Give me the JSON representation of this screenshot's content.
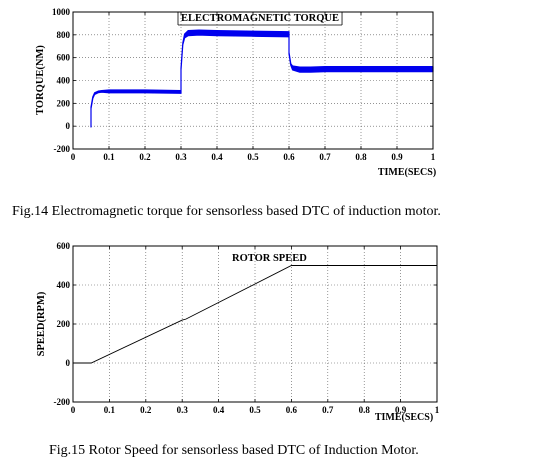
{
  "figures": [
    {
      "caption": "Fig.14 Electromagnetic torque for sensorless based DTC of induction motor."
    },
    {
      "caption": "Fig.15 Rotor Speed for sensorless based DTC of Induction Motor."
    }
  ],
  "chart_data": [
    {
      "type": "line",
      "title": "ELECTROMAGNETIC TORQUE",
      "xlabel": "TIME(SECS)",
      "ylabel": "TORQUE(NM)",
      "xlim": [
        0,
        1
      ],
      "ylim": [
        -200,
        1000
      ],
      "xticks": [
        0,
        0.1,
        0.2,
        0.3,
        0.4,
        0.5,
        0.6,
        0.7,
        0.8,
        0.9,
        1
      ],
      "xtick_labels": [
        "0",
        "0.1",
        "0.2",
        "0.3",
        "0.4",
        "0.5",
        "0.6",
        "0.7",
        "0.8",
        "0.9",
        "1"
      ],
      "yticks": [
        -200,
        0,
        200,
        400,
        600,
        800,
        1000
      ],
      "ytick_labels": [
        "-200",
        "0",
        "200",
        "400",
        "600",
        "800",
        "1000"
      ],
      "grid": true,
      "band_color": "#0000ee",
      "series": [
        {
          "x": [
            0.05,
            0.05,
            0.055,
            0.06,
            0.07,
            0.08,
            0.1,
            0.2,
            0.3,
            0.3,
            0.305,
            0.31,
            0.32,
            0.35,
            0.4,
            0.5,
            0.6,
            0.6,
            0.605,
            0.61,
            0.63,
            0.66,
            0.7,
            0.8,
            0.9,
            1.0
          ],
          "y": [
            0,
            160,
            250,
            285,
            300,
            305,
            305,
            305,
            300,
            500,
            720,
            790,
            815,
            820,
            815,
            810,
            805,
            640,
            540,
            510,
            495,
            495,
            500,
            500,
            500,
            500
          ],
          "band": [
            0,
            0,
            0,
            0,
            0,
            0,
            10,
            10,
            10,
            0,
            0,
            20,
            30,
            30,
            30,
            30,
            30,
            0,
            0,
            20,
            30,
            30,
            30,
            30,
            30,
            30
          ]
        }
      ]
    },
    {
      "type": "line",
      "title": "ROTOR SPEED",
      "xlabel": "TIME(SECS)",
      "ylabel": "SPEED(RPM)",
      "xlim": [
        0,
        1
      ],
      "ylim": [
        -200,
        600
      ],
      "xticks": [
        0,
        0.1,
        0.2,
        0.3,
        0.4,
        0.5,
        0.6,
        0.7,
        0.8,
        0.9,
        1
      ],
      "xtick_labels": [
        "0",
        "0.1",
        "0.2",
        "0.3",
        "0.4",
        "0.5",
        "0.6",
        "0.7",
        "0.8",
        "0.9",
        "1"
      ],
      "yticks": [
        -200,
        0,
        200,
        400,
        600
      ],
      "ytick_labels": [
        "-200",
        "0",
        "200",
        "400",
        "600"
      ],
      "grid": true,
      "line_color": "#000000",
      "series": [
        {
          "x": [
            0,
            0.05,
            0.3,
            0.31,
            0.6,
            0.62,
            1.0
          ],
          "y": [
            0,
            0,
            220,
            225,
            500,
            500,
            500
          ]
        }
      ]
    }
  ]
}
